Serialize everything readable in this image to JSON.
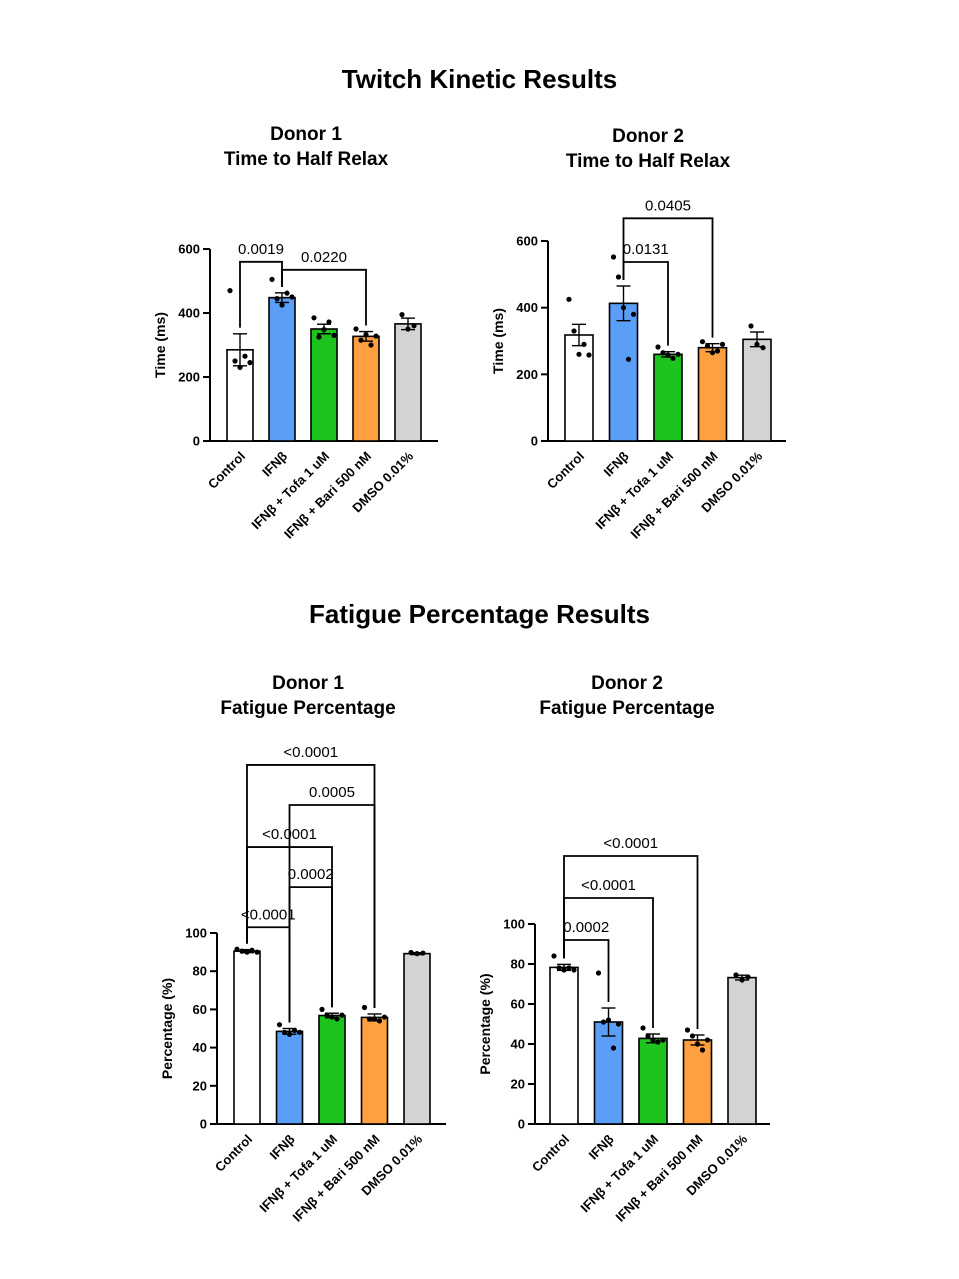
{
  "sections": {
    "top_title": "Twitch Kinetic Results",
    "bottom_title": "Fatigue Percentage Results"
  },
  "colors": {
    "control": "#ffffff",
    "ifnb": "#5b9ef7",
    "tofa": "#1ec41e",
    "bari": "#ff9f3f",
    "dmso": "#d3d3d3"
  },
  "chart_data": [
    {
      "type": "bar",
      "title": "Donor 1",
      "subtitle": "Time to Half Relax",
      "ylabel": "Time (ms)",
      "ylim": [
        0,
        600
      ],
      "yticks": [
        0,
        200,
        400,
        600
      ],
      "categories": [
        "Control",
        "IFNβ",
        "IFNβ + Tofa 1 uM",
        "IFNβ + Bari 500 nM",
        "DMSO 0.01%"
      ],
      "values": [
        285,
        448,
        350,
        327,
        366
      ],
      "errors": [
        50,
        15,
        15,
        15,
        18
      ],
      "points": [
        [
          470,
          250,
          230,
          265,
          245
        ],
        [
          505,
          445,
          425,
          462,
          450
        ],
        [
          385,
          325,
          348,
          372,
          330
        ],
        [
          350,
          315,
          333,
          300,
          328
        ],
        [
          395,
          350,
          360
        ]
      ],
      "comparisons": [
        {
          "from": 0,
          "to": 1,
          "label": "0.0019",
          "y": 560
        },
        {
          "from": 1,
          "to": 3,
          "label": "0.0220",
          "y": 535
        }
      ]
    },
    {
      "type": "bar",
      "title": "Donor 2",
      "subtitle": "Time to Half Relax",
      "ylabel": "Time (ms)",
      "ylim": [
        0,
        600
      ],
      "yticks": [
        0,
        200,
        400,
        600
      ],
      "categories": [
        "Control",
        "IFNβ",
        "IFNβ + Tofa 1 uM",
        "IFNβ + Bari 500 nM",
        "DMSO 0.01%"
      ],
      "values": [
        318,
        413,
        260,
        280,
        305
      ],
      "errors": [
        32,
        52,
        8,
        12,
        22
      ],
      "points": [
        [
          425,
          330,
          260,
          290,
          258
        ],
        [
          552,
          492,
          400,
          245,
          380
        ],
        [
          282,
          265,
          258,
          248,
          260
        ],
        [
          298,
          285,
          265,
          270,
          290
        ],
        [
          345,
          290,
          280
        ]
      ],
      "comparisons": [
        {
          "from": 1,
          "to": 2,
          "label": "0.0131",
          "y": 537
        },
        {
          "from": 1,
          "to": 3,
          "label": "0.0405",
          "y": 668
        }
      ]
    },
    {
      "type": "bar",
      "title": "Donor 1",
      "subtitle": "Fatigue Percentage",
      "ylabel": "Percentage (%)",
      "ylim": [
        0,
        100
      ],
      "yticks": [
        0,
        20,
        40,
        60,
        80,
        100
      ],
      "categories": [
        "Control",
        "IFNβ",
        "IFNβ + Tofa 1 uM",
        "IFNβ + Bari 500 nM",
        "DMSO 0.01%"
      ],
      "values": [
        90.5,
        48.5,
        56.8,
        55.8,
        89.2
      ],
      "errors": [
        0.8,
        1.5,
        1.2,
        1.8,
        0.5
      ],
      "points": [
        [
          91.5,
          90.5,
          90.0,
          91.0,
          90.0
        ],
        [
          52,
          48,
          47,
          49,
          48
        ],
        [
          60,
          57,
          56,
          55,
          57
        ],
        [
          61,
          55,
          55,
          54,
          56
        ],
        [
          89.8,
          89.2,
          89.5
        ]
      ],
      "comparisons": [
        {
          "from": 0,
          "to": 1,
          "label": "<0.0001",
          "y": 103
        },
        {
          "from": 1,
          "to": 2,
          "label": "0.0002",
          "y": 124
        },
        {
          "from": 0,
          "to": 2,
          "label": "<0.0001",
          "y": 145
        },
        {
          "from": 1,
          "to": 3,
          "label": "0.0005",
          "y": 167
        },
        {
          "from": 0,
          "to": 3,
          "label": "<0.0001",
          "y": 188
        }
      ]
    },
    {
      "type": "bar",
      "title": "Donor 2",
      "subtitle": "Fatigue Percentage",
      "ylabel": "Percentage (%)",
      "ylim": [
        0,
        100
      ],
      "yticks": [
        0,
        20,
        40,
        60,
        80,
        100
      ],
      "categories": [
        "Control",
        "IFNβ",
        "IFNβ + Tofa 1 uM",
        "IFNβ + Bari 500 nM",
        "DMSO 0.01%"
      ],
      "values": [
        78.3,
        51,
        42.8,
        42.0,
        73.2
      ],
      "errors": [
        1.5,
        7,
        2.2,
        2.5,
        1.2
      ],
      "points": [
        [
          84,
          78,
          77,
          78,
          77
        ],
        [
          75.5,
          51,
          52,
          38,
          50
        ],
        [
          48,
          44,
          42,
          41,
          42
        ],
        [
          47,
          44,
          40,
          37,
          42
        ],
        [
          74.5,
          72,
          73.5
        ]
      ],
      "comparisons": [
        {
          "from": 0,
          "to": 1,
          "label": "0.0002",
          "y": 92
        },
        {
          "from": 0,
          "to": 2,
          "label": "<0.0001",
          "y": 113
        },
        {
          "from": 0,
          "to": 3,
          "label": "<0.0001",
          "y": 134
        }
      ]
    }
  ]
}
